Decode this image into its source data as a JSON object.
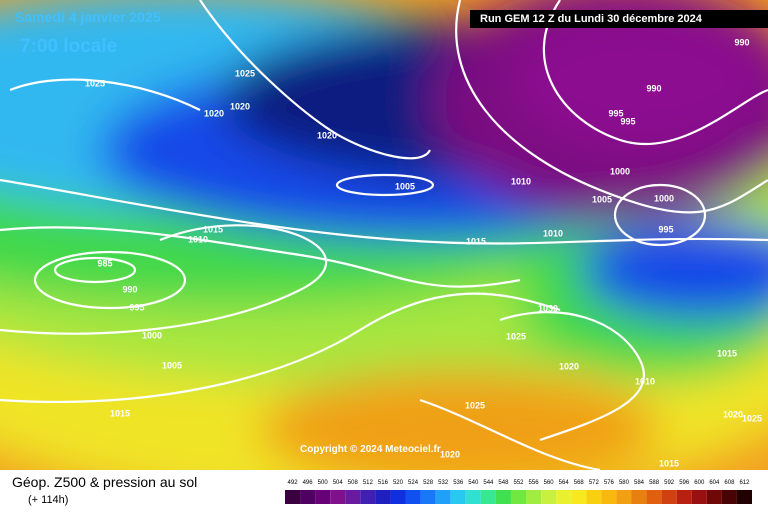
{
  "header": {
    "date": "Samedi 4 janvier 2025",
    "time": "7:00 locale",
    "run": "Run GEM 12 Z du Lundi 30 décembre 2024"
  },
  "isobar_labels": [
    "1025",
    "1025",
    "1020",
    "1020",
    "1020",
    "1005",
    "1015",
    "1010",
    "985",
    "990",
    "995",
    "1000",
    "1005",
    "1015",
    "1015",
    "1010",
    "1010",
    "1005",
    "1000",
    "1000",
    "995",
    "995",
    "995",
    "990",
    "990",
    "1030",
    "1025",
    "1020",
    "1010",
    "1015",
    "1025",
    "1020",
    "1015",
    "1020",
    "1025"
  ],
  "copyright": "Copyright © 2024 Meteociel.fr",
  "footer": {
    "title": "Géop. Z500 & pression au sol",
    "lead": "(+ 114h)"
  },
  "scale": [
    492,
    496,
    500,
    504,
    508,
    512,
    516,
    520,
    524,
    528,
    532,
    536,
    540,
    544,
    548,
    552,
    556,
    560,
    564,
    568,
    572,
    576,
    580,
    584,
    588,
    592,
    596,
    600,
    604,
    608,
    612
  ]
}
